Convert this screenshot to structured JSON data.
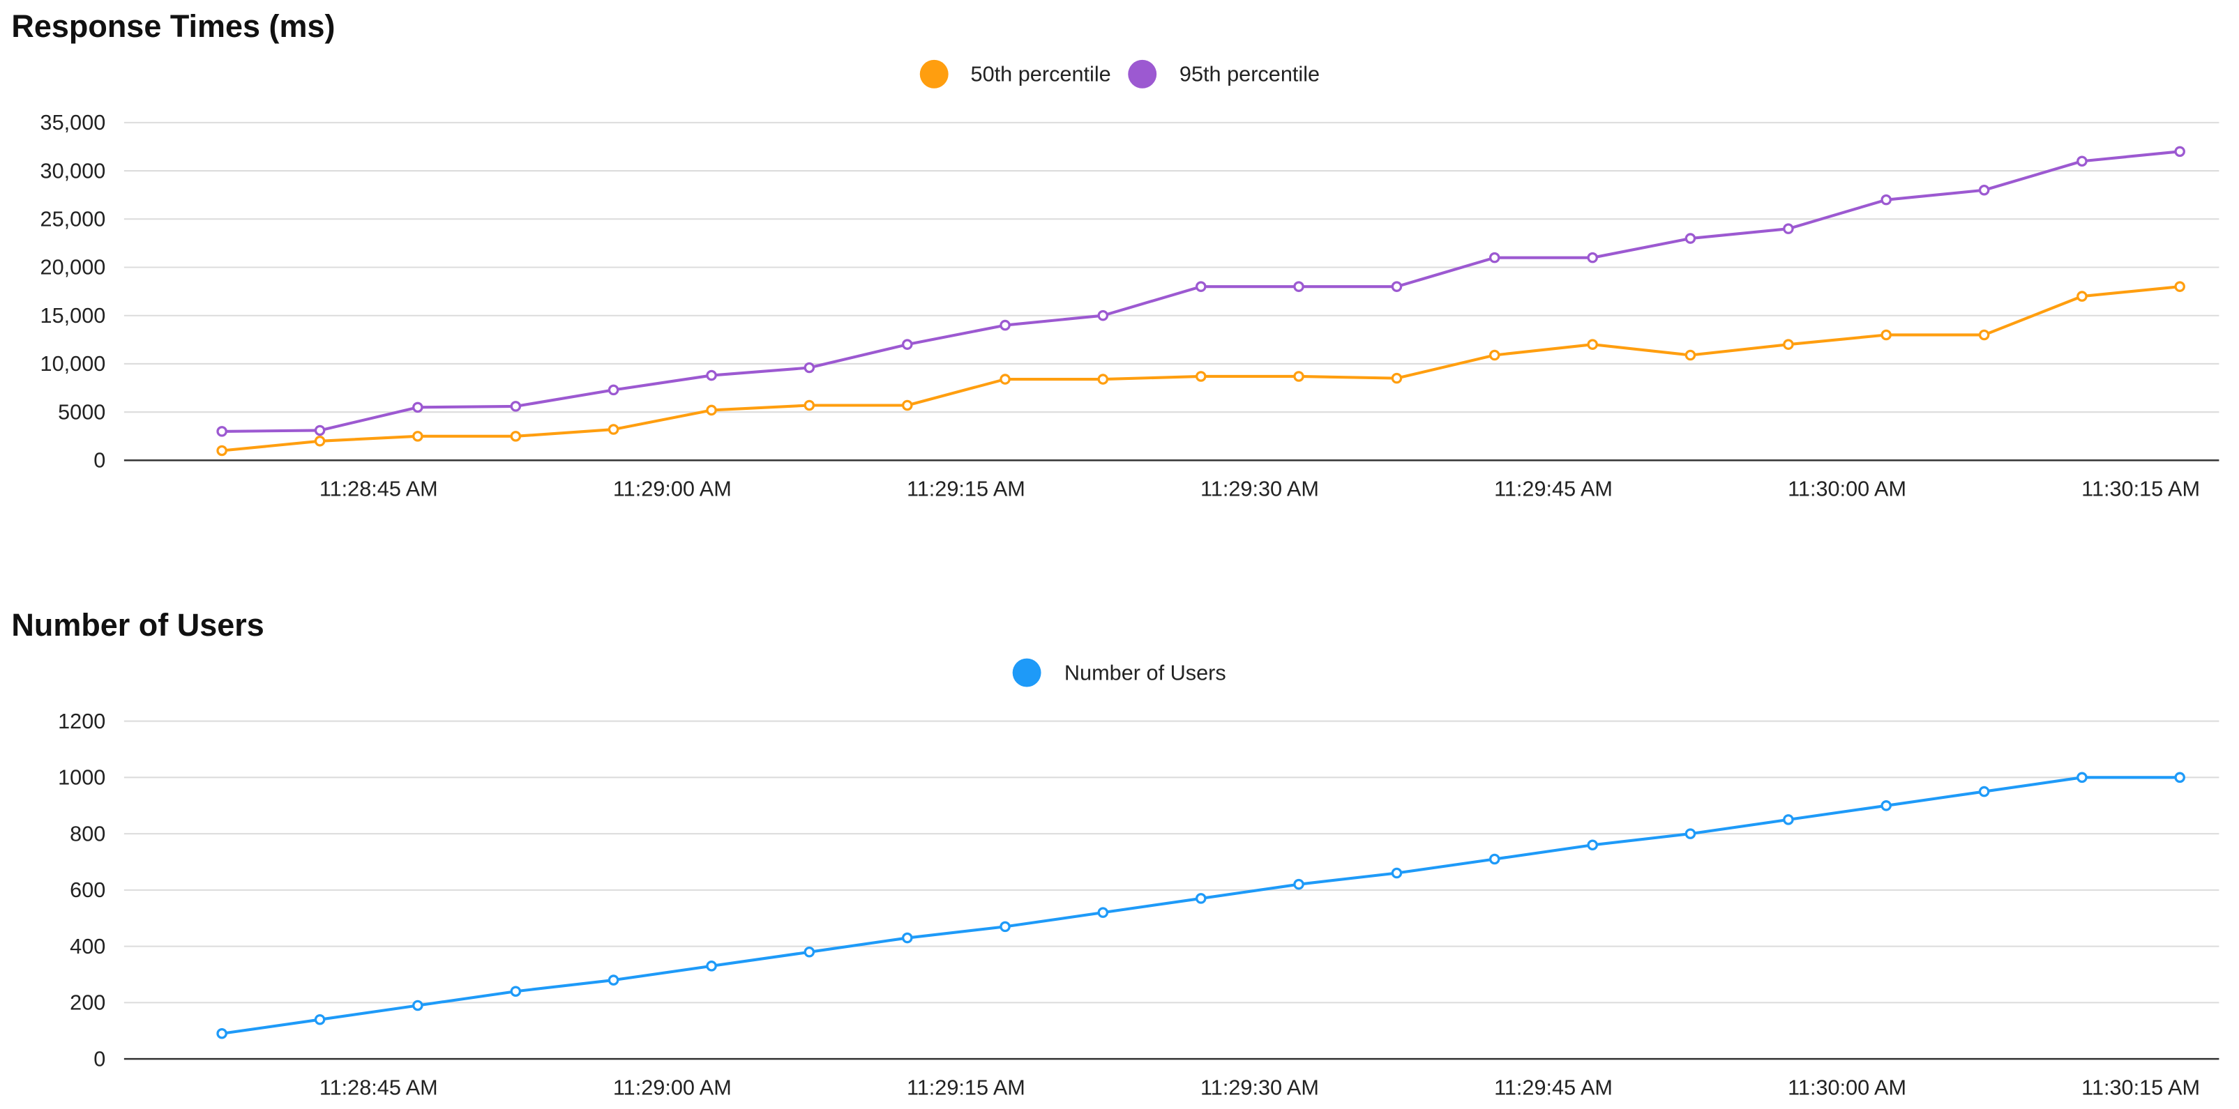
{
  "chart_data": [
    {
      "type": "line",
      "title": "Response Times (ms)",
      "xlabel": "",
      "ylabel": "",
      "x": [
        "11:28:37 AM",
        "11:28:42 AM",
        "11:28:47 AM",
        "11:28:52 AM",
        "11:28:57 AM",
        "11:29:02 AM",
        "11:29:07 AM",
        "11:29:12 AM",
        "11:29:17 AM",
        "11:29:22 AM",
        "11:29:27 AM",
        "11:29:32 AM",
        "11:29:37 AM",
        "11:29:42 AM",
        "11:29:47 AM",
        "11:29:52 AM",
        "11:29:57 AM",
        "11:30:02 AM",
        "11:30:07 AM",
        "11:30:12 AM",
        "11:30:17 AM"
      ],
      "xticks": [
        "11:28:45 AM",
        "11:29:00 AM",
        "11:29:15 AM",
        "11:29:30 AM",
        "11:29:45 AM",
        "11:30:00 AM",
        "11:30:15 AM"
      ],
      "yticks": [
        "0",
        "5000",
        "10,000",
        "15,000",
        "20,000",
        "25,000",
        "30,000",
        "35,000"
      ],
      "ylim": [
        0,
        35000
      ],
      "grid": true,
      "legend_position": "top-center",
      "series": [
        {
          "name": "50th percentile",
          "color": "#ff9e0f",
          "values": [
            1000,
            2000,
            2500,
            2500,
            3200,
            5200,
            5700,
            5700,
            8400,
            8400,
            8700,
            8700,
            8500,
            10900,
            12000,
            10900,
            12000,
            13000,
            13000,
            17000,
            18000
          ]
        },
        {
          "name": "95th percentile",
          "color": "#9c59d1",
          "values": [
            3000,
            3100,
            5500,
            5600,
            7300,
            8800,
            9600,
            12000,
            14000,
            15000,
            18000,
            18000,
            18000,
            21000,
            21000,
            23000,
            24000,
            27000,
            28000,
            31000,
            32000
          ]
        }
      ]
    },
    {
      "type": "line",
      "title": "Number of Users",
      "xlabel": "",
      "ylabel": "",
      "x": [
        "11:28:37 AM",
        "11:28:42 AM",
        "11:28:47 AM",
        "11:28:52 AM",
        "11:28:57 AM",
        "11:29:02 AM",
        "11:29:07 AM",
        "11:29:12 AM",
        "11:29:17 AM",
        "11:29:22 AM",
        "11:29:27 AM",
        "11:29:32 AM",
        "11:29:37 AM",
        "11:29:42 AM",
        "11:29:47 AM",
        "11:29:52 AM",
        "11:29:57 AM",
        "11:30:02 AM",
        "11:30:07 AM",
        "11:30:12 AM",
        "11:30:17 AM"
      ],
      "xticks": [
        "11:28:45 AM",
        "11:29:00 AM",
        "11:29:15 AM",
        "11:29:30 AM",
        "11:29:45 AM",
        "11:30:00 AM",
        "11:30:15 AM"
      ],
      "yticks": [
        "0",
        "200",
        "400",
        "600",
        "800",
        "1000",
        "1200"
      ],
      "ylim": [
        0,
        1200
      ],
      "grid": true,
      "legend_position": "top-center",
      "series": [
        {
          "name": "Number of Users",
          "color": "#1e9af8",
          "values": [
            90,
            140,
            190,
            240,
            280,
            330,
            380,
            430,
            470,
            520,
            570,
            620,
            660,
            710,
            760,
            800,
            850,
            900,
            950,
            1000,
            1000
          ]
        }
      ]
    }
  ]
}
